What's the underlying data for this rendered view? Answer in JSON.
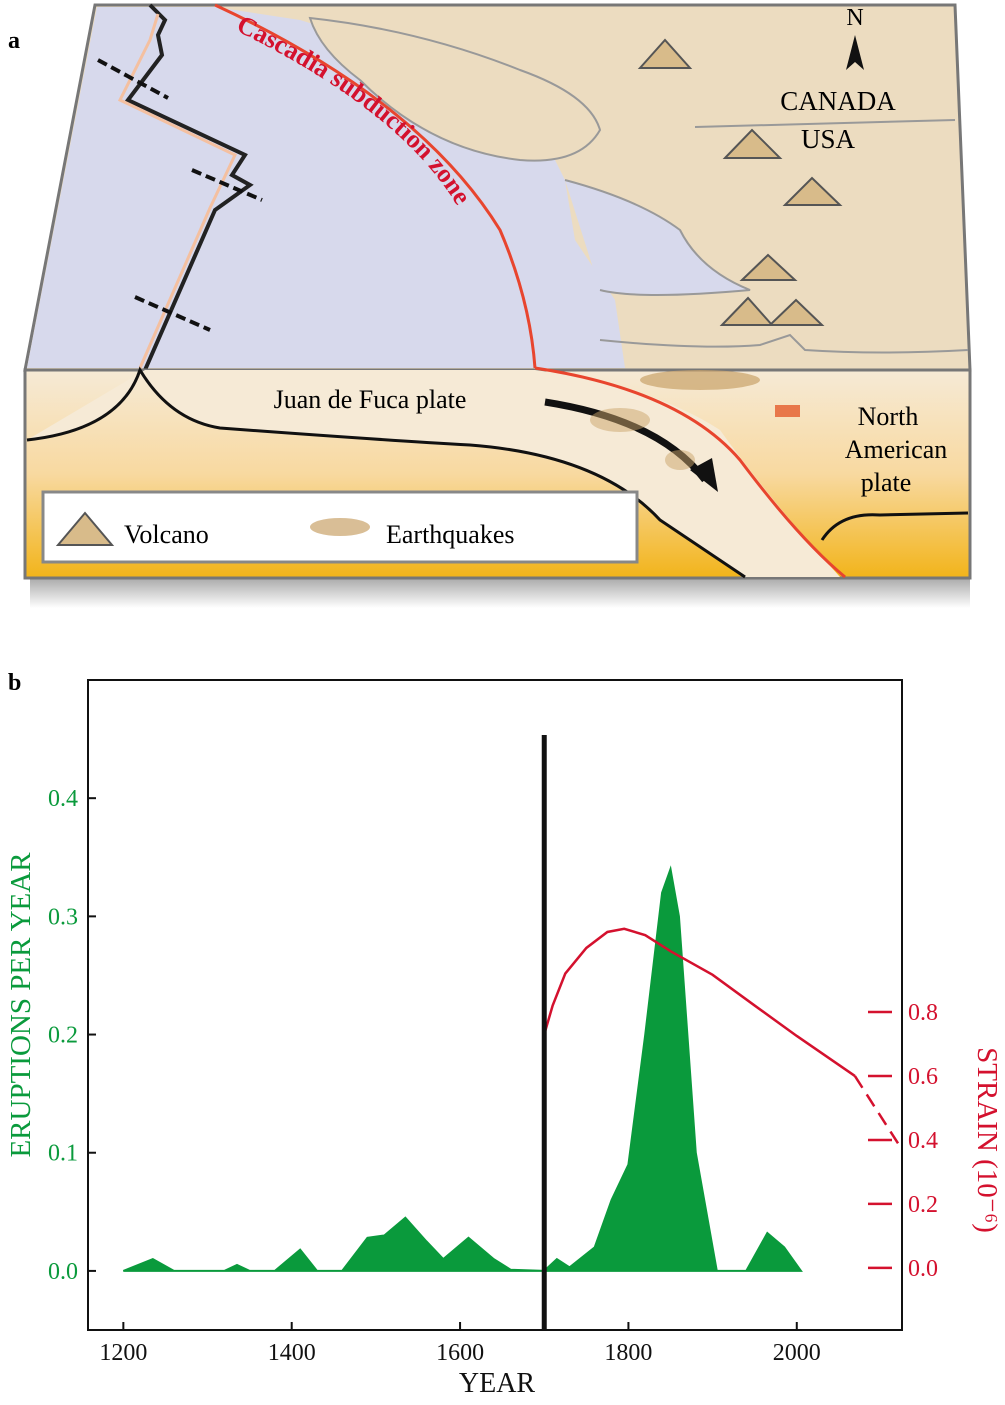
{
  "diagram": {
    "label": "a",
    "subduction_zone": "Cascadia subduction zone",
    "north": "N",
    "countries": [
      "CANADA",
      "USA"
    ],
    "plate_west": "Juan de Fuca plate",
    "plate_east": [
      "North",
      "American",
      "plate"
    ],
    "legend": [
      "Volcano",
      "Earthquakes"
    ]
  },
  "chart_data": {
    "type": "area",
    "panel_label": "b",
    "x_label": "YEAR",
    "y_label": "ERUPTIONS PER YEAR",
    "y2_label": "STRAIN (10⁻⁶)",
    "xlim": [
      1158,
      2125
    ],
    "xticks": [
      1200,
      1400,
      1600,
      1800,
      2000
    ],
    "ylim": [
      -0.05,
      0.5
    ],
    "yticks": [
      {
        "value": 0,
        "label": "0.0"
      },
      0.1,
      0.2,
      0.3,
      0.4
    ],
    "y2lim": [
      -0.194,
      1.8375
    ],
    "y2ticks": [
      {
        "value": 0,
        "label": "0.0"
      },
      0.2,
      0.4,
      0.6,
      0.8
    ],
    "vline_x": 1700,
    "series": [
      {
        "type": "area",
        "color": "#0a9a3c",
        "x": [
          1200,
          1235,
          1260,
          1320,
          1335,
          1350,
          1380,
          1410,
          1430,
          1460,
          1490,
          1510,
          1535,
          1560,
          1580,
          1610,
          1640,
          1660,
          1700,
          1715,
          1730,
          1760,
          1780,
          1800,
          1820,
          1840,
          1850,
          1860,
          1880,
          1905,
          1940,
          1965,
          1985,
          2005
        ],
        "values": [
          0,
          0.01,
          0,
          0,
          0.005,
          0,
          0,
          0.018,
          0,
          0,
          0.028,
          0.03,
          0.045,
          0.025,
          0.01,
          0.028,
          0.01,
          0.001,
          0,
          0.01,
          0.003,
          0.02,
          0.06,
          0.09,
          0.2,
          0.32,
          0.34,
          0.3,
          0.1,
          0,
          0,
          0.032,
          0.02,
          0
        ]
      },
      {
        "type": "line",
        "axis": "y2",
        "style": "solid",
        "color": "#d4112e",
        "x": [
          1700,
          1710,
          1725,
          1750,
          1775,
          1795,
          1820,
          1850,
          1900,
          1950,
          2000,
          2069
        ],
        "values": [
          0.73,
          0.82,
          0.92,
          1.0,
          1.05,
          1.06,
          1.04,
          0.99,
          0.916,
          0.82,
          0.725,
          0.6
        ]
      },
      {
        "type": "line",
        "axis": "y2",
        "style": "dashed",
        "color": "#d4112e",
        "x": [
          2069,
          2125
        ],
        "values": [
          0.6,
          0.37
        ]
      }
    ]
  }
}
